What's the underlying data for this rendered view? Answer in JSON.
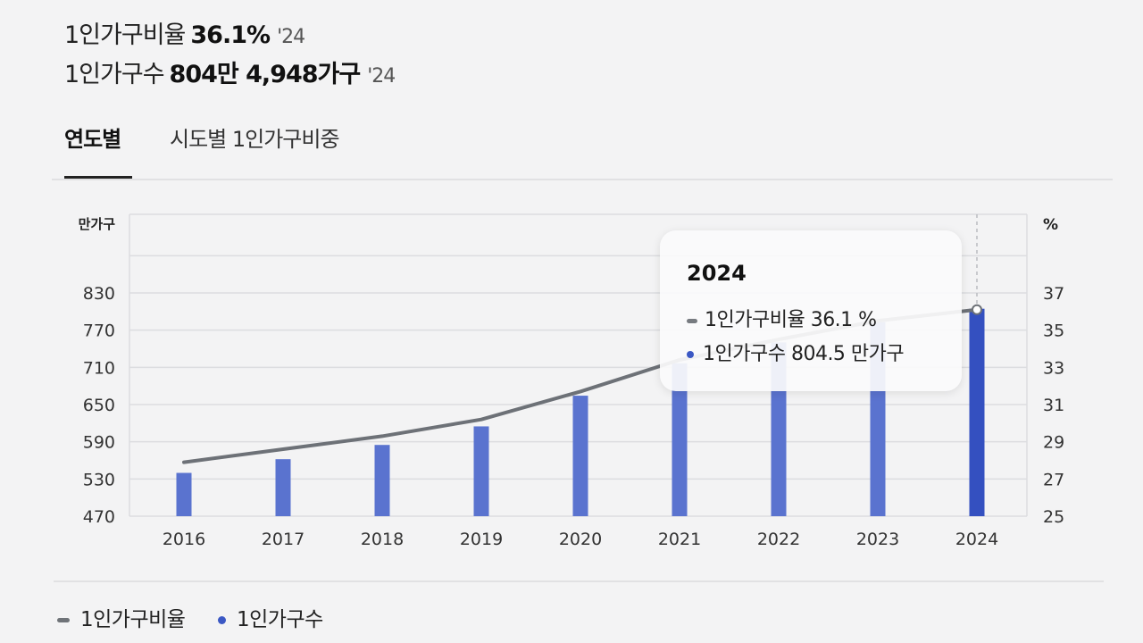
{
  "stats": {
    "ratio_label": "1인가구비율",
    "ratio_value": "36.1%",
    "ratio_year": "'24",
    "count_label": "1인가구수",
    "count_value": "804만 4,948가구",
    "count_year": "'24"
  },
  "tabs": [
    {
      "label": "연도별",
      "active": true
    },
    {
      "label": "시도별 1인가구비중",
      "active": false
    }
  ],
  "tooltip": {
    "title": "2024",
    "ratio_text": "1인가구비율 36.1 %",
    "count_text": "1인가구수 804.5 만가구"
  },
  "legend": {
    "ratio": "1인가구비율",
    "count": "1인가구수"
  },
  "colors": {
    "bar": "#5a73cf",
    "bar_highlight": "#3450c0",
    "line": "#6d7177",
    "grid": "#dcdde0"
  },
  "chart_data": {
    "type": "bar",
    "categories": [
      "2016",
      "2017",
      "2018",
      "2019",
      "2020",
      "2021",
      "2022",
      "2023",
      "2024"
    ],
    "series": [
      {
        "name": "1인가구수",
        "type": "bar",
        "axis": "left",
        "values": [
          539.8,
          561.9,
          584.9,
          614.8,
          664.3,
          716.6,
          750.2,
          782.9,
          804.5
        ]
      },
      {
        "name": "1인가구비율",
        "type": "line",
        "axis": "right",
        "values": [
          27.9,
          28.6,
          29.3,
          30.2,
          31.7,
          33.4,
          34.5,
          35.5,
          36.1
        ]
      }
    ],
    "y_left": {
      "label": "만가구",
      "ticks": [
        470,
        530,
        590,
        650,
        710,
        770,
        830
      ],
      "range": [
        470,
        830
      ]
    },
    "y_right": {
      "label": "%",
      "ticks": [
        25,
        27,
        29,
        31,
        33,
        35,
        37
      ],
      "range": [
        25,
        37
      ]
    },
    "highlight_index": 8,
    "grid": true,
    "legend_position": "bottom-left"
  }
}
